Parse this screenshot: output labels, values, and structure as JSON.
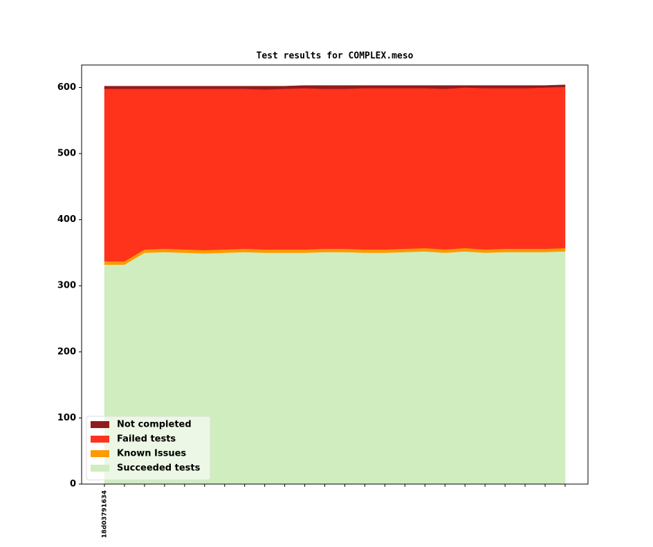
{
  "chart_data": {
    "type": "stacked-area",
    "title": "Test results for COMPLEX.meso",
    "categories": [
      "18d03791634",
      null,
      null,
      null,
      null,
      null,
      null,
      null,
      null,
      null,
      null,
      null,
      null,
      null,
      null,
      null,
      null,
      null,
      null,
      null,
      null,
      null,
      null,
      null
    ],
    "series": [
      {
        "name": "Succeeded tests",
        "color": "#cfedbf",
        "values": [
          332,
          332,
          350,
          351,
          350,
          349,
          350,
          351,
          350,
          350,
          350,
          351,
          351,
          350,
          350,
          351,
          352,
          350,
          352,
          350,
          351,
          351,
          351,
          352
        ]
      },
      {
        "name": "Known Issues",
        "color": "#ff9a00",
        "values": [
          5,
          5,
          5,
          5,
          5,
          5,
          5,
          5,
          5,
          5,
          5,
          5,
          5,
          5,
          5,
          5,
          5,
          5,
          5,
          5,
          5,
          5,
          5,
          5
        ]
      },
      {
        "name": "Failed tests",
        "color": "#ff321c",
        "values": [
          261,
          261,
          243,
          242,
          243,
          244,
          243,
          242,
          242,
          243,
          244,
          242,
          242,
          244,
          244,
          243,
          242,
          243,
          243,
          244,
          243,
          243,
          244,
          244
        ]
      },
      {
        "name": "Not completed",
        "color": "#921b1e",
        "values": [
          4,
          4,
          4,
          4,
          4,
          4,
          4,
          4,
          5,
          4,
          4,
          5,
          5,
          4,
          4,
          4,
          4,
          5,
          3,
          4,
          4,
          4,
          3,
          3
        ]
      }
    ],
    "ylim": [
      0,
      634
    ],
    "yticks": [
      0,
      100,
      200,
      300,
      400,
      500,
      600
    ],
    "legend": "lower left"
  }
}
